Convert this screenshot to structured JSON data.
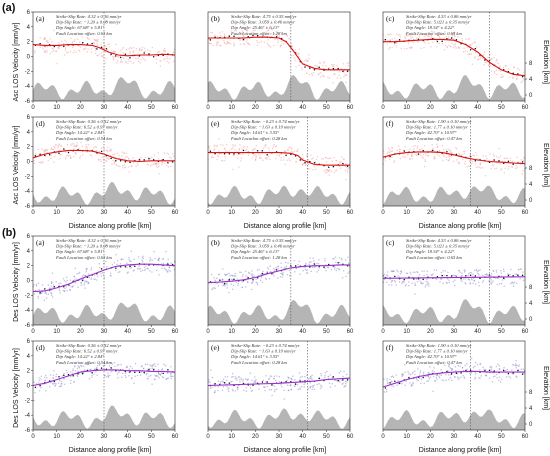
{
  "figure": {
    "group_labels": [
      "(a)",
      "(b)"
    ],
    "row_ylabels": {
      "A1": "Asc LOS Velocity [mm/yr]",
      "A2": "Asc LOS Velocity [mm/yr]",
      "B1": "Des LOS Velocity [mm/yr]",
      "B2": "Des LOS Velocity [mm/yr]"
    },
    "elev_label": "Elevation [km]",
    "xlabel": "Distance along profile [km]",
    "xticks": [
      "0",
      "10",
      "20",
      "30",
      "40",
      "50",
      "60"
    ],
    "yticks": [
      "-6",
      "-4",
      "-2",
      "0",
      "2",
      "4",
      "6"
    ],
    "elev_ticks": [
      "0",
      "4",
      "8"
    ],
    "colors": {
      "asc_points": "#f2a0a0",
      "asc_model": "#e01010",
      "des_points": "#8a8fc8",
      "des_model": "#9b30d0",
      "binned": "#111111",
      "topo": "#b5b5b5"
    }
  },
  "annotations": {
    "a": [
      "Strike-Slip Rate: 4.32 ± 0.16 mm/yr",
      "Dip-Slip Rate: −1.20 ± 0.08 mm/yr",
      "Dip Angle: 67.68° ± 5.81°",
      "Fault Location offset: 0.63 km"
    ],
    "b": [
      "Strike-Slip Rate: 4.75 ± 0.55 mm/yr",
      "Dip-Slip Rate: 3.059 ± 0.46 mm/yr",
      "Dip Angle: 25.46° ± 6.13°",
      "Fault Location offset: 1.28 km"
    ],
    "c": [
      "Strike-Slip Rate: 4.53 ± 0.86 mm/yr",
      "Dip-Slip Rate: 5.021 ± 0.35 mm/yr",
      "Dip Angle: 18.34° ± 4.22°",
      "Fault Location offset: 0.65 km"
    ],
    "d": [
      "Strike-Slip Rate: 0.56 ± 0.52 mm/yr",
      "Dip-Slip Rate: 6.52 ± 0.97 mm/yr",
      "Dip Angle: 14.22° ± 2.84°",
      "Fault Location offset: 0.54 km"
    ],
    "e": [
      "Strike-Slip Rate: −0.23 ± 0.74 mm/yr",
      "Dip-Slip Rate: −1.63 ± 0.19 mm/yr",
      "Dip Angle: 14.61° ± 3.55°",
      "Fault Location offset: 0.28 km"
    ],
    "f": [
      "Strike-Slip Rate: 1.90 ± 0.10 mm/yr",
      "Dip-Slip Rate: 1.77 ± 0.10 mm/yr",
      "Dip Angle: 42.70° ± 10.97°",
      "Fault Location offset: 0.47 km"
    ]
  },
  "chart_data": [
    {
      "type": "line",
      "panel": "(a)",
      "group": "(a)",
      "x": [
        0,
        5,
        10,
        15,
        20,
        25,
        28,
        32,
        36,
        40,
        45,
        50,
        55,
        60
      ],
      "series": [
        {
          "values": [
            1.6,
            1.5,
            1.5,
            1.6,
            1.6,
            1.5,
            1.2,
            0.6,
            0.2,
            0.1,
            0.2,
            0.2,
            0.3,
            0.2
          ]
        }
      ],
      "fault_x": 30,
      "xlim": [
        0,
        60
      ],
      "ylim": [
        -6,
        6
      ]
    },
    {
      "type": "line",
      "panel": "(b)",
      "group": "(a)",
      "x": [
        0,
        5,
        10,
        15,
        20,
        25,
        30,
        33,
        36,
        40,
        45,
        50,
        55,
        60
      ],
      "series": [
        {
          "values": [
            2.5,
            2.5,
            2.5,
            2.5,
            2.6,
            2.6,
            2.5,
            2.0,
            0.8,
            -1.0,
            -1.6,
            -1.8,
            -1.8,
            -1.8
          ]
        }
      ],
      "fault_x": 35,
      "xlim": [
        0,
        60
      ],
      "ylim": [
        -6,
        6
      ]
    },
    {
      "type": "line",
      "panel": "(c)",
      "group": "(a)",
      "x": [
        0,
        5,
        10,
        15,
        20,
        25,
        30,
        35,
        40,
        45,
        50,
        55,
        60
      ],
      "series": [
        {
          "values": [
            2.0,
            2.0,
            2.1,
            2.2,
            2.3,
            2.3,
            2.2,
            1.6,
            0.6,
            -0.8,
            -1.8,
            -2.4,
            -2.6
          ]
        }
      ],
      "fault_x": 45,
      "xlim": [
        0,
        60
      ],
      "ylim": [
        -6,
        6
      ]
    },
    {
      "type": "line",
      "panel": "(d)",
      "group": "(a)",
      "x": [
        0,
        5,
        10,
        15,
        20,
        25,
        30,
        35,
        40,
        45,
        50,
        55,
        60
      ],
      "series": [
        {
          "values": [
            0.5,
            1.0,
            1.3,
            1.5,
            1.5,
            1.4,
            1.0,
            0.4,
            0.1,
            0.0,
            0.1,
            0.1,
            0.1
          ]
        }
      ],
      "fault_x": 30,
      "xlim": [
        0,
        60
      ],
      "ylim": [
        -6,
        6
      ]
    },
    {
      "type": "line",
      "panel": "(e)",
      "group": "(a)",
      "x": [
        0,
        5,
        10,
        15,
        20,
        25,
        30,
        35,
        38,
        40,
        45,
        50,
        55,
        60
      ],
      "series": [
        {
          "values": [
            1.2,
            1.2,
            1.2,
            1.2,
            1.2,
            1.2,
            1.2,
            1.1,
            0.8,
            0.2,
            -0.4,
            -0.5,
            -0.5,
            -0.5
          ]
        }
      ],
      "fault_x": 42,
      "xlim": [
        0,
        60
      ],
      "ylim": [
        -6,
        6
      ]
    },
    {
      "type": "line",
      "panel": "(f)",
      "group": "(a)",
      "x": [
        0,
        5,
        10,
        15,
        20,
        25,
        30,
        35,
        40,
        45,
        50,
        55,
        60
      ],
      "series": [
        {
          "values": [
            0.6,
            1.0,
            1.2,
            1.3,
            1.3,
            1.2,
            0.9,
            0.5,
            0.2,
            0.0,
            -0.1,
            -0.2,
            -0.3
          ]
        }
      ],
      "fault_x": 37,
      "xlim": [
        0,
        60
      ],
      "ylim": [
        -6,
        6
      ]
    },
    {
      "type": "line",
      "panel": "(a)",
      "group": "(b)",
      "x": [
        0,
        5,
        10,
        15,
        20,
        25,
        30,
        35,
        40,
        45,
        50,
        55,
        60
      ],
      "series": [
        {
          "values": [
            -1.5,
            -1.4,
            -1.0,
            -0.5,
            0.2,
            0.8,
            1.4,
            1.9,
            2.1,
            2.2,
            2.2,
            2.1,
            2.0
          ]
        }
      ],
      "fault_x": 30,
      "xlim": [
        0,
        60
      ],
      "ylim": [
        -6,
        6
      ]
    },
    {
      "type": "line",
      "panel": "(b)",
      "group": "(b)",
      "x": [
        0,
        5,
        10,
        15,
        20,
        25,
        30,
        35,
        40,
        45,
        50,
        55,
        60
      ],
      "series": [
        {
          "values": [
            -0.3,
            -0.2,
            -0.1,
            0.1,
            0.4,
            0.9,
            1.3,
            1.7,
            1.9,
            2.0,
            2.0,
            2.1,
            2.1
          ]
        }
      ],
      "fault_x": 35,
      "xlim": [
        0,
        60
      ],
      "ylim": [
        -6,
        6
      ]
    },
    {
      "type": "line",
      "panel": "(c)",
      "group": "(b)",
      "x": [
        0,
        60
      ],
      "series": [
        {
          "values": [
            0.3,
            0.5
          ]
        }
      ],
      "fault_x": 45,
      "xlim": [
        0,
        60
      ],
      "ylim": [
        -6,
        6
      ]
    },
    {
      "type": "line",
      "panel": "(d)",
      "group": "(b)",
      "x": [
        0,
        5,
        10,
        15,
        20,
        25,
        30,
        35,
        40,
        45,
        50,
        55,
        60
      ],
      "series": [
        {
          "values": [
            0.0,
            0.3,
            0.8,
            1.3,
            1.8,
            2.0,
            2.1,
            2.1,
            2.0,
            2.0,
            1.9,
            1.9,
            1.8
          ]
        }
      ],
      "fault_x": 30,
      "xlim": [
        0,
        60
      ],
      "ylim": [
        -6,
        6
      ]
    },
    {
      "type": "line",
      "panel": "(e)",
      "group": "(b)",
      "x": [
        0,
        10,
        20,
        30,
        40,
        45,
        50,
        55,
        60
      ],
      "series": [
        {
          "values": [
            0.0,
            0.1,
            0.2,
            0.3,
            0.5,
            0.6,
            0.8,
            0.9,
            1.0
          ]
        }
      ],
      "fault_x": 42,
      "xlim": [
        0,
        60
      ],
      "ylim": [
        -6,
        6
      ]
    },
    {
      "type": "line",
      "panel": "(f)",
      "group": "(b)",
      "x": [
        0,
        5,
        10,
        15,
        20,
        25,
        30,
        35,
        40,
        45,
        50,
        55,
        60
      ],
      "series": [
        {
          "values": [
            -0.2,
            0.3,
            0.8,
            1.2,
            1.5,
            1.7,
            1.8,
            1.9,
            1.9,
            1.8,
            1.8,
            1.8,
            1.8
          ]
        }
      ],
      "fault_x": 37,
      "xlim": [
        0,
        60
      ],
      "ylim": [
        -6,
        6
      ]
    }
  ]
}
